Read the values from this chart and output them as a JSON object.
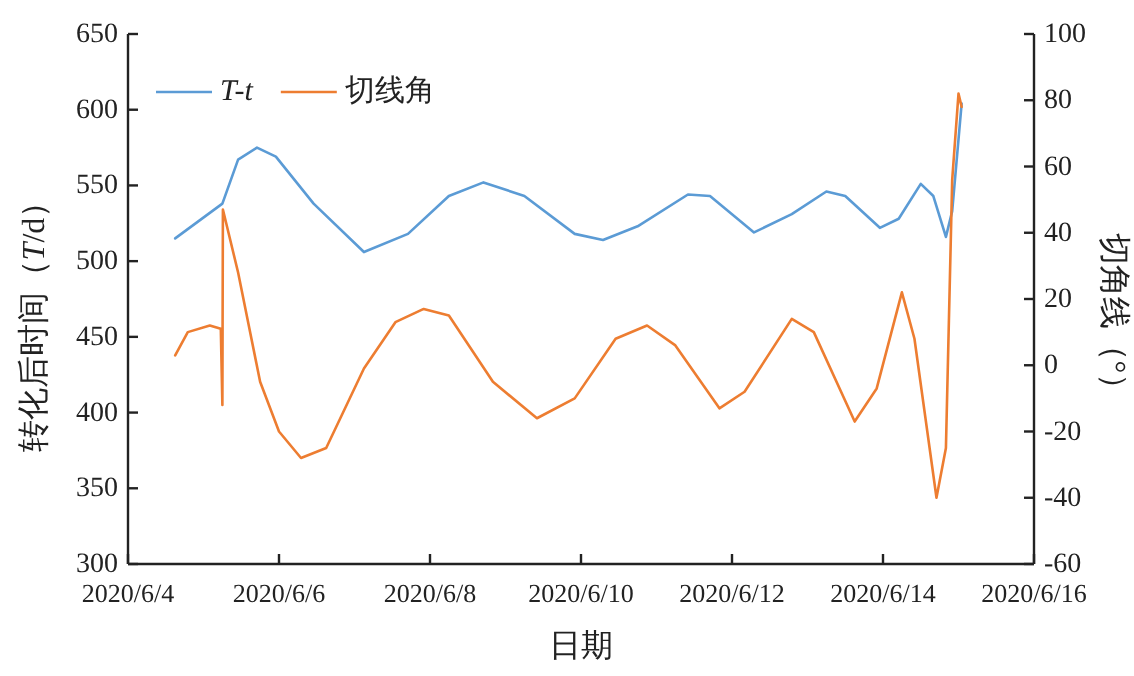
{
  "chart_data": {
    "type": "line",
    "xlabel": "日期",
    "ylabel": "转化后时间（*T*/d）",
    "y2label": "切角线（°）",
    "xlim": [
      "2020-06-04",
      "2020-06-16"
    ],
    "xticks": [
      {
        "value": "2020-06-04",
        "label": "2020/6/4"
      },
      {
        "value": "2020-06-06",
        "label": "2020/6/6"
      },
      {
        "value": "2020-06-08",
        "label": "2020/6/8"
      },
      {
        "value": "2020-06-10",
        "label": "2020/6/10"
      },
      {
        "value": "2020-06-12",
        "label": "2020/6/12"
      },
      {
        "value": "2020-06-14",
        "label": "2020/6/14"
      },
      {
        "value": "2020-06-16",
        "label": "2020/6/16"
      }
    ],
    "ylim": [
      300,
      650
    ],
    "yticks": [
      300,
      350,
      400,
      450,
      500,
      550,
      600,
      650
    ],
    "y2lim": [
      -60,
      100
    ],
    "y2ticks": [
      -60,
      -40,
      -20,
      0,
      20,
      40,
      60,
      80,
      100
    ],
    "grid": false,
    "legend": "top left",
    "marker": "none",
    "line_style": "solid",
    "series": [
      {
        "name": "T-t",
        "color": "#5b9bd5",
        "x": [
          "2020-06-04T15:00",
          "2020-06-05T06:00",
          "2020-06-05T11:00",
          "2020-06-05T17:00",
          "2020-06-05T23:00",
          "2020-06-06T11:00",
          "2020-06-07T03:00",
          "2020-06-07T17:00",
          "2020-06-08T06:00",
          "2020-06-08T17:00",
          "2020-06-09T06:00",
          "2020-06-09T22:00",
          "2020-06-10T07:00",
          "2020-06-10T18:00",
          "2020-06-11T10:00",
          "2020-06-11T17:00",
          "2020-06-12T07:00",
          "2020-06-12T19:00",
          "2020-06-13T06:00",
          "2020-06-13T12:00",
          "2020-06-13T23:00",
          "2020-06-14T05:00",
          "2020-06-14T12:00",
          "2020-06-14T16:00",
          "2020-06-14T20:00",
          "2020-06-14T22:00",
          "2020-06-15T01:00"
        ],
        "values": [
          515,
          538,
          567,
          575,
          569,
          538,
          506,
          518,
          543,
          552,
          543,
          518,
          514,
          523,
          544,
          543,
          519,
          531,
          546,
          543,
          522,
          528,
          551,
          543,
          516,
          533,
          604
        ]
      },
      {
        "name": "切线角",
        "color": "#ed7d31",
        "axis": "y2",
        "x": [
          "2020-06-04T15:00",
          "2020-06-04T19:00",
          "2020-06-05T02:00",
          "2020-06-05T05:30",
          "2020-06-05T06:00",
          "2020-06-05T06:10",
          "2020-06-05T11:00",
          "2020-06-05T18:00",
          "2020-06-06T00:00",
          "2020-06-06T07:00",
          "2020-06-06T15:00",
          "2020-06-07T03:00",
          "2020-06-07T13:00",
          "2020-06-07T22:00",
          "2020-06-08T06:00",
          "2020-06-08T20:00",
          "2020-06-09T10:00",
          "2020-06-09T22:00",
          "2020-06-10T11:00",
          "2020-06-10T21:00",
          "2020-06-11T06:00",
          "2020-06-11T20:00",
          "2020-06-12T04:00",
          "2020-06-12T19:00",
          "2020-06-13T02:00",
          "2020-06-13T15:00",
          "2020-06-13T22:00",
          "2020-06-14T06:00",
          "2020-06-14T10:00",
          "2020-06-14T17:00",
          "2020-06-14T20:00",
          "2020-06-14T22:00",
          "2020-06-15T00:00",
          "2020-06-15T01:00"
        ],
        "values": [
          3,
          10,
          12,
          11,
          -12,
          47,
          28,
          -5,
          -20,
          -28,
          -25,
          -1,
          13,
          17,
          15,
          -5,
          -16,
          -10,
          8,
          12,
          6,
          -13,
          -8,
          14,
          10,
          -17,
          -7,
          22,
          8,
          -40,
          -25,
          56,
          82,
          78
        ]
      }
    ]
  }
}
